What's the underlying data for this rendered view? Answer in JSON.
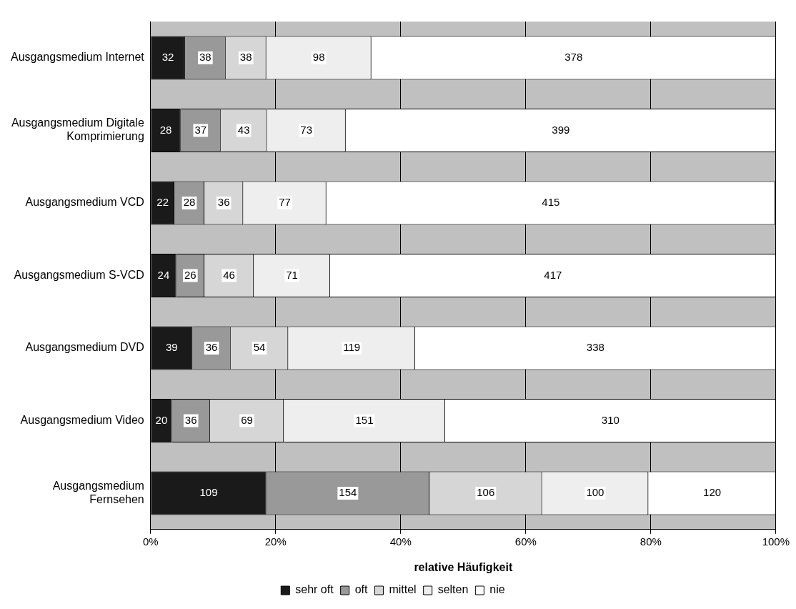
{
  "chart_data": {
    "type": "bar",
    "orientation": "horizontal",
    "stacked": true,
    "categories": [
      "Ausgangsmedium Internet",
      "Ausgangsmedium Digitale Komprimierung",
      "Ausgangsmedium VCD",
      "Ausgangsmedium S-VCD",
      "Ausgangsmedium DVD",
      "Ausgangsmedium Video",
      "Ausgangsmedium Fernsehen"
    ],
    "series": [
      {
        "name": "sehr oft",
        "color": "#1a1a1a",
        "values": [
          5.5,
          4.8,
          3.8,
          4.1,
          6.7,
          3.4,
          18.5
        ]
      },
      {
        "name": "oft",
        "color": "#999999",
        "values": [
          6.5,
          6.4,
          4.8,
          4.5,
          6.1,
          6.1,
          26.1
        ]
      },
      {
        "name": "mittel",
        "color": "#d6d6d6",
        "values": [
          6.5,
          7.4,
          6.2,
          7.9,
          9.2,
          11.8,
          18.0
        ]
      },
      {
        "name": "selten",
        "color": "#eeeeee",
        "values": [
          16.8,
          12.6,
          13.3,
          12.2,
          20.3,
          25.8,
          17.0
        ]
      },
      {
        "name": "nie",
        "color": "#ffffff",
        "values": [
          64.7,
          68.8,
          71.8,
          71.3,
          57.7,
          52.9,
          20.4
        ]
      }
    ],
    "annotations": [
      "32",
      "38",
      "38",
      "98",
      "378",
      "28",
      "37",
      "43",
      "73",
      "399",
      "22",
      "28",
      "36",
      "77",
      "415",
      "24",
      "26",
      "46",
      "71",
      "417",
      "39",
      "36",
      "54",
      "119",
      "338",
      "20",
      "36",
      "69",
      "151",
      "310",
      "109",
      "154",
      "106",
      "100",
      "120"
    ],
    "xlim": [
      0,
      100
    ],
    "xticks": [
      {
        "value": 0,
        "label": "0%"
      },
      {
        "value": 20,
        "label": "20%"
      },
      {
        "value": 40,
        "label": "40%"
      },
      {
        "value": 60,
        "label": "60%"
      },
      {
        "value": 80,
        "label": "80%"
      },
      {
        "value": 100,
        "label": "100%"
      }
    ],
    "xlabel": "relative Häufigkeit",
    "grid": "x",
    "legend": "bottom"
  }
}
